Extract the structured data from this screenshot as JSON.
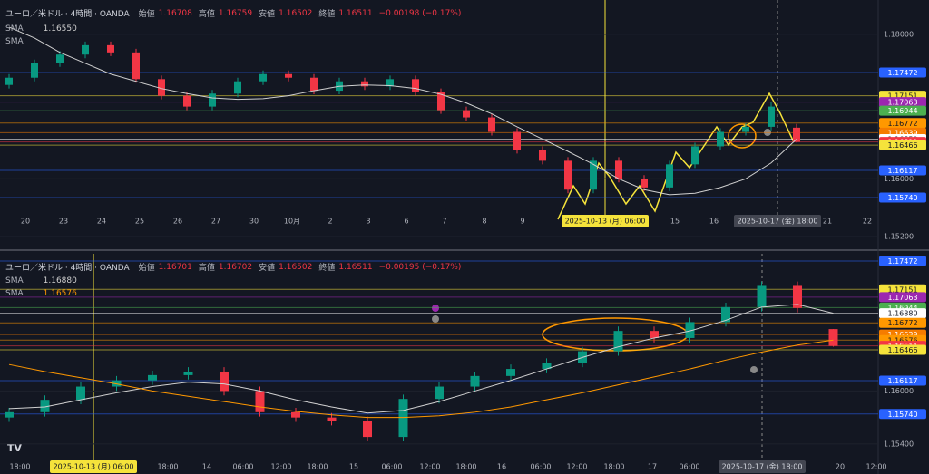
{
  "panels": [
    {
      "symbol": "ユーロ／米ドル · 4時間 · OANDA",
      "ohlc": [
        {
          "label": "始値",
          "value": "1.16708"
        },
        {
          "label": "高値",
          "value": "1.16759"
        },
        {
          "label": "安値",
          "value": "1.16502"
        },
        {
          "label": "終値",
          "value": "1.16511"
        }
      ],
      "change": "−0.00198 (−0.17%)",
      "indicators": [
        {
          "name": "SMA",
          "value": "1.16550"
        },
        {
          "name": "SMA"
        }
      ],
      "ylim": [
        1.15188,
        1.18413
      ],
      "yticks": [
        {
          "value": 1.18,
          "label": "1.18000"
        },
        {
          "value": 1.16,
          "label": "1.16000"
        },
        {
          "value": 1.152,
          "label": "1.15200"
        }
      ],
      "levels": [
        {
          "value": 1.17472,
          "label": "1.17472",
          "color": "#2962ff"
        },
        {
          "value": 1.17151,
          "label": "1.17151",
          "color": "#f5e33b"
        },
        {
          "value": 1.17063,
          "label": "1.17063",
          "color": "#9c27b0"
        },
        {
          "value": 1.16944,
          "label": "1.16944",
          "color": "#4caf50"
        },
        {
          "value": 1.16772,
          "label": "1.16772",
          "color": "#ff9800"
        },
        {
          "value": 1.16639,
          "label": "1.16639",
          "color": "#f57c00"
        },
        {
          "value": 1.1655,
          "label": "1.16550",
          "color": "#ffffff"
        },
        {
          "value": 1.16511,
          "label": "1.16511",
          "color": "#f23645"
        },
        {
          "value": 1.16466,
          "label": "1.16466",
          "color": "#f5e33b"
        },
        {
          "value": 1.16117,
          "label": "1.16117",
          "color": "#2962ff"
        },
        {
          "value": 1.1574,
          "label": "1.15740",
          "color": "#2962ff"
        }
      ],
      "candles": [
        [
          1.173,
          1.1745,
          1.1725,
          1.174
        ],
        [
          1.174,
          1.1765,
          1.1735,
          1.176
        ],
        [
          1.176,
          1.1777,
          1.1755,
          1.1772
        ],
        [
          1.1772,
          1.179,
          1.1767,
          1.1785
        ],
        [
          1.1785,
          1.179,
          1.177,
          1.1775
        ],
        [
          1.1775,
          1.178,
          1.1733,
          1.1738
        ],
        [
          1.1738,
          1.1743,
          1.171,
          1.1715
        ],
        [
          1.1715,
          1.172,
          1.1695,
          1.17
        ],
        [
          1.17,
          1.1723,
          1.1695,
          1.1718
        ],
        [
          1.1718,
          1.174,
          1.1713,
          1.1735
        ],
        [
          1.1735,
          1.175,
          1.173,
          1.1745
        ],
        [
          1.1745,
          1.175,
          1.1735,
          1.174
        ],
        [
          1.174,
          1.1745,
          1.1717,
          1.1722
        ],
        [
          1.1722,
          1.174,
          1.1717,
          1.1735
        ],
        [
          1.1735,
          1.174,
          1.1723,
          1.1728
        ],
        [
          1.1728,
          1.1743,
          1.1723,
          1.1738
        ],
        [
          1.1738,
          1.1743,
          1.1715,
          1.172
        ],
        [
          1.172,
          1.1725,
          1.169,
          1.1695
        ],
        [
          1.1695,
          1.17,
          1.168,
          1.1685
        ],
        [
          1.1685,
          1.169,
          1.166,
          1.1665
        ],
        [
          1.1665,
          1.167,
          1.1635,
          1.164
        ],
        [
          1.164,
          1.1645,
          1.162,
          1.1625
        ],
        [
          1.1625,
          1.163,
          1.158,
          1.1585
        ],
        [
          1.1585,
          1.163,
          1.158,
          1.1625
        ],
        [
          1.1625,
          1.163,
          1.1595,
          1.16
        ],
        [
          1.16,
          1.1605,
          1.1583,
          1.1588
        ],
        [
          1.1588,
          1.1625,
          1.1583,
          1.162
        ],
        [
          1.162,
          1.165,
          1.1615,
          1.1645
        ],
        [
          1.1645,
          1.167,
          1.164,
          1.1665
        ],
        [
          1.1665,
          1.1677,
          1.166,
          1.1672
        ],
        [
          1.1672,
          1.1706,
          1.1667,
          1.17
        ],
        [
          1.16708,
          1.16759,
          1.16502,
          1.16511
        ]
      ],
      "sma": [
        {
          "color": "#d0d0d0",
          "values": [
            1.181,
            1.1795,
            1.1775,
            1.176,
            1.1745,
            1.1735,
            1.1725,
            1.1718,
            1.1712,
            1.171,
            1.1711,
            1.1715,
            1.1722,
            1.1728,
            1.173,
            1.1729,
            1.1725,
            1.1717,
            1.1705,
            1.169,
            1.1672,
            1.1655,
            1.1638,
            1.162,
            1.16,
            1.1585,
            1.1578,
            1.158,
            1.1588,
            1.16,
            1.1622,
            1.1655
          ]
        }
      ],
      "time_labels": [
        "20",
        "23",
        "24",
        "25",
        "26",
        "27",
        "30",
        "10月",
        "2",
        "3",
        "6",
        "7",
        "8",
        "9",
        "15",
        "16",
        "21",
        "22"
      ],
      "crosshair_labels": [
        "2025-10-13 (月)  06:00",
        "2025-10-17 (金)  18:00"
      ]
    },
    {
      "symbol": "ユーロ／米ドル · 4時間 · OANDA",
      "ohlc": [
        {
          "label": "始値",
          "value": "1.16701"
        },
        {
          "label": "高値",
          "value": "1.16702"
        },
        {
          "label": "安値",
          "value": "1.16502"
        },
        {
          "label": "終値",
          "value": "1.16511"
        }
      ],
      "change": "−0.00195 (−0.17%)",
      "indicators": [
        {
          "name": "SMA",
          "value": "1.16880"
        },
        {
          "name": "SMA",
          "value": "1.16576"
        }
      ],
      "ylim": [
        1.15245,
        1.17523
      ],
      "yticks": [
        {
          "value": 1.16,
          "label": "1.16000"
        },
        {
          "value": 1.154,
          "label": "1.15400"
        }
      ],
      "levels": [
        {
          "value": 1.17472,
          "label": "1.17472",
          "color": "#2962ff"
        },
        {
          "value": 1.17151,
          "label": "1.17151",
          "color": "#f5e33b"
        },
        {
          "value": 1.17063,
          "label": "1.17063",
          "color": "#9c27b0"
        },
        {
          "value": 1.16944,
          "label": "1.16944",
          "color": "#4caf50"
        },
        {
          "value": 1.1688,
          "label": "1.16880",
          "color": "#ffffff"
        },
        {
          "value": 1.16772,
          "label": "1.16772",
          "color": "#ff9800"
        },
        {
          "value": 1.16639,
          "label": "1.16639",
          "color": "#f57c00"
        },
        {
          "value": 1.16576,
          "label": "1.16576",
          "color": "#ff9800"
        },
        {
          "value": 1.16511,
          "label": "1.16511",
          "color": "#f23645"
        },
        {
          "value": 1.16466,
          "label": "1.16466",
          "color": "#f5e33b"
        },
        {
          "value": 1.16117,
          "label": "1.16117",
          "color": "#2962ff"
        },
        {
          "value": 1.1574,
          "label": "1.15740",
          "color": "#2962ff"
        }
      ],
      "candles": [
        [
          1.157,
          1.1581,
          1.1565,
          1.1576
        ],
        [
          1.1576,
          1.1595,
          1.1571,
          1.159
        ],
        [
          1.159,
          1.161,
          1.1585,
          1.1605
        ],
        [
          1.1605,
          1.1617,
          1.16,
          1.1612
        ],
        [
          1.1612,
          1.1623,
          1.1607,
          1.1618
        ],
        [
          1.1618,
          1.1627,
          1.1613,
          1.1622
        ],
        [
          1.1622,
          1.1627,
          1.1595,
          1.16
        ],
        [
          1.16,
          1.1605,
          1.1571,
          1.1576
        ],
        [
          1.1576,
          1.1581,
          1.1565,
          1.157
        ],
        [
          1.157,
          1.1575,
          1.1561,
          1.1566
        ],
        [
          1.1566,
          1.1571,
          1.1543,
          1.1548
        ],
        [
          1.1548,
          1.1596,
          1.1543,
          1.1591
        ],
        [
          1.1591,
          1.161,
          1.1586,
          1.1605
        ],
        [
          1.1605,
          1.1622,
          1.16,
          1.1617
        ],
        [
          1.1617,
          1.163,
          1.1612,
          1.1625
        ],
        [
          1.1625,
          1.1637,
          1.162,
          1.1632
        ],
        [
          1.1632,
          1.165,
          1.1627,
          1.1645
        ],
        [
          1.1645,
          1.1673,
          1.164,
          1.1668
        ],
        [
          1.1668,
          1.1673,
          1.1655,
          1.166
        ],
        [
          1.166,
          1.1683,
          1.1655,
          1.1678
        ],
        [
          1.1678,
          1.17,
          1.1673,
          1.1695
        ],
        [
          1.1695,
          1.1724,
          1.169,
          1.1719
        ],
        [
          1.1719,
          1.1724,
          1.1689,
          1.1694
        ],
        [
          1.16701,
          1.16702,
          1.16502,
          1.16511
        ]
      ],
      "sma": [
        {
          "color": "#d0d0d0",
          "values": [
            1.158,
            1.1582,
            1.159,
            1.1598,
            1.1605,
            1.161,
            1.1608,
            1.16,
            1.159,
            1.1582,
            1.1575,
            1.1578,
            1.1588,
            1.16,
            1.1612,
            1.1625,
            1.1638,
            1.165,
            1.166,
            1.1668,
            1.168,
            1.1695,
            1.1698,
            1.1688
          ]
        },
        {
          "color": "#ff9800",
          "values": [
            1.163,
            1.1622,
            1.1615,
            1.1608,
            1.16,
            1.1594,
            1.1588,
            1.1582,
            1.1577,
            1.1573,
            1.157,
            1.157,
            1.1572,
            1.1576,
            1.1582,
            1.159,
            1.1598,
            1.1607,
            1.1616,
            1.1625,
            1.1635,
            1.1644,
            1.1652,
            1.16576
          ]
        }
      ],
      "time_labels": [
        "18:00",
        "18:00",
        "14",
        "06:00",
        "12:00",
        "18:00",
        "15",
        "06:00",
        "12:00",
        "18:00",
        "16",
        "06:00",
        "12:00",
        "18:00",
        "17",
        "06:00",
        "20",
        "12:00"
      ],
      "crosshair_labels": [
        "2025-10-13 (月)  06:00",
        "2025-10-17 (金)  18:00"
      ]
    }
  ]
}
